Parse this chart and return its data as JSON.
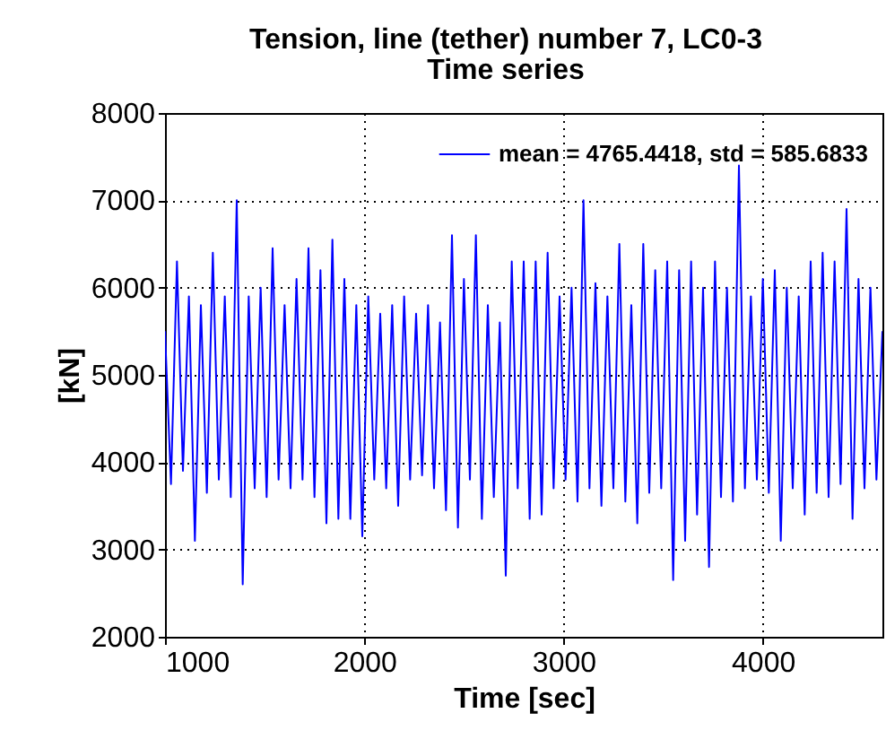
{
  "chart_data": {
    "type": "line",
    "title": "Tension, line (tether) number 7, LC0-3",
    "subtitle": "Time series",
    "xlabel": "Time [sec]",
    "ylabel": "[kN]",
    "x": [
      1000,
      1030,
      1060,
      1090,
      1120,
      1150,
      1180,
      1210,
      1240,
      1270,
      1300,
      1330,
      1360,
      1390,
      1420,
      1450,
      1480,
      1510,
      1540,
      1570,
      1600,
      1630,
      1660,
      1690,
      1720,
      1750,
      1780,
      1810,
      1840,
      1870,
      1900,
      1930,
      1960,
      1990,
      2020,
      2050,
      2080,
      2110,
      2140,
      2170,
      2200,
      2230,
      2260,
      2290,
      2320,
      2350,
      2380,
      2410,
      2440,
      2470,
      2500,
      2530,
      2560,
      2590,
      2620,
      2650,
      2680,
      2710,
      2740,
      2770,
      2800,
      2830,
      2860,
      2890,
      2920,
      2950,
      2980,
      3010,
      3040,
      3070,
      3100,
      3130,
      3160,
      3190,
      3220,
      3250,
      3280,
      3310,
      3340,
      3370,
      3400,
      3430,
      3460,
      3490,
      3520,
      3550,
      3580,
      3610,
      3640,
      3670,
      3700,
      3730,
      3760,
      3790,
      3820,
      3850,
      3880,
      3910,
      3940,
      3970,
      4000,
      4030,
      4060,
      4090,
      4120,
      4150,
      4180,
      4210,
      4240,
      4270,
      4300,
      4330,
      4360,
      4390,
      4420,
      4450,
      4480,
      4510,
      4540,
      4570,
      4600
    ],
    "series": [
      {
        "name": "mean = 4765.4418, std = 585.6833",
        "color": "#0000ff",
        "values": [
          5500,
          3750,
          6300,
          3900,
          5900,
          3100,
          5800,
          3650,
          6400,
          3800,
          5900,
          3600,
          7000,
          2600,
          5900,
          3700,
          6000,
          3600,
          6450,
          3800,
          5800,
          3700,
          6100,
          3800,
          6450,
          3600,
          6200,
          3300,
          6550,
          3350,
          6100,
          3350,
          5800,
          3150,
          5900,
          3800,
          5700,
          3700,
          5800,
          3500,
          5900,
          3800,
          5700,
          3850,
          5800,
          3700,
          5600,
          3450,
          6600,
          3250,
          6100,
          3800,
          6600,
          3350,
          5800,
          3600,
          5600,
          2700,
          6300,
          3700,
          6300,
          3350,
          6300,
          3400,
          6400,
          3700,
          5900,
          3800,
          6000,
          3550,
          7000,
          3700,
          6050,
          3500,
          5900,
          3700,
          6500,
          3550,
          5800,
          3300,
          6500,
          3650,
          6200,
          3700,
          6300,
          2650,
          6200,
          3100,
          6300,
          3400,
          6000,
          2800,
          6300,
          3600,
          6000,
          3550,
          7400,
          3700,
          5900,
          3800,
          6100,
          3650,
          6200,
          3100,
          6000,
          3700,
          5900,
          3400,
          6300,
          3650,
          6400,
          3600,
          6300,
          3750,
          6900,
          3350,
          6100,
          3700,
          6000,
          3800,
          5500
        ]
      }
    ],
    "xlim": [
      1000,
      4600
    ],
    "ylim": [
      2000,
      8000
    ],
    "xticks": [
      1000,
      2000,
      3000,
      4000
    ],
    "yticks": [
      2000,
      3000,
      4000,
      5000,
      6000,
      7000,
      8000
    ],
    "grid": true,
    "legend": "top right"
  }
}
